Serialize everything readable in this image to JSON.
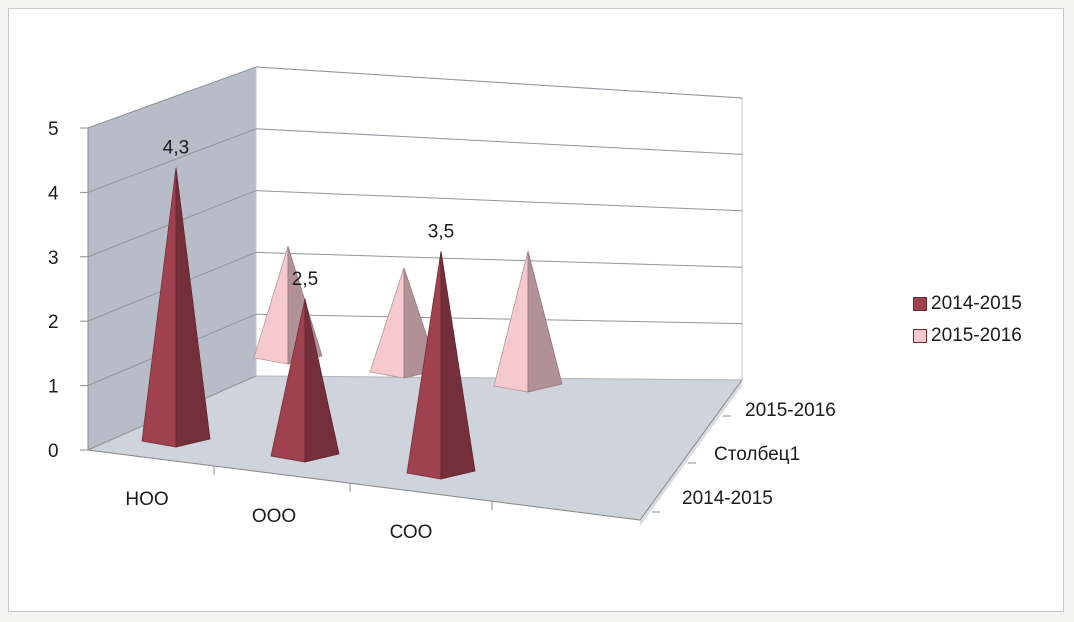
{
  "chart_data": {
    "type": "bar",
    "subtype": "3d-pyramid",
    "categories": [
      "НОО",
      "ООО",
      "СОО"
    ],
    "depth_axis_labels": [
      "2014-2015",
      "Столбец1",
      "2015-2016"
    ],
    "series": [
      {
        "name": "2014-2015",
        "values": [
          4.3,
          2.5,
          3.5
        ],
        "data_labels": [
          "4,3",
          "2,5",
          "3,5"
        ]
      },
      {
        "name": "Столбец1",
        "values": [
          null,
          null,
          null
        ]
      },
      {
        "name": "2015-2016",
        "values": [
          3.0,
          2.8,
          3.6
        ]
      }
    ],
    "yticks": [
      "0",
      "1",
      "2",
      "3",
      "4",
      "5"
    ],
    "ylim": [
      0,
      5
    ],
    "grid": true,
    "legend_position": "right",
    "legend": [
      "2014-2015",
      "2015-2016"
    ]
  },
  "colors": {
    "series_2014_2015": "#a04150",
    "series_2015_2016": "#f6c9cf",
    "walls": "#b7bcc6",
    "floor": "#cfd3db"
  }
}
